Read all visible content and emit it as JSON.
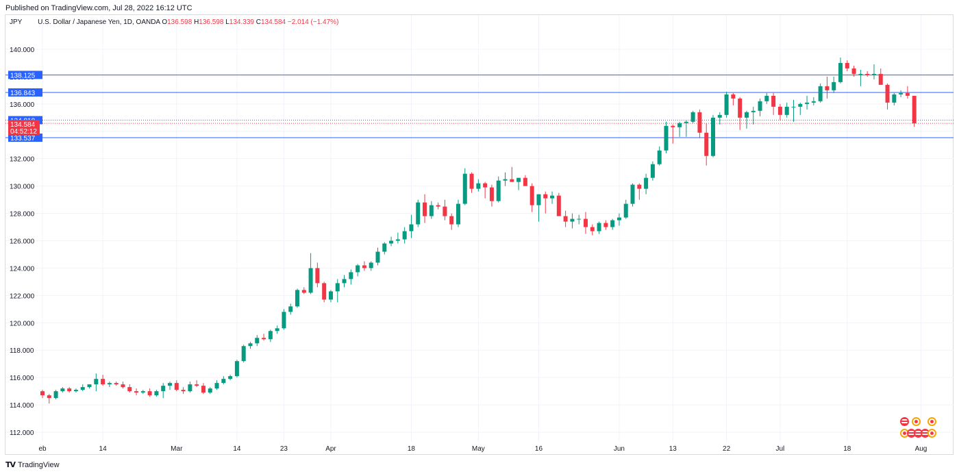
{
  "header": {
    "published": "Published on TradingView.com, Jul 28, 2022 16:12 UTC"
  },
  "legend": {
    "symbol": "JPY",
    "instrument": "U.S. Dollar / Japanese Yen, 1D, OANDA",
    "o_label": "O",
    "o_value": "136.598",
    "h_label": "H",
    "h_value": "136.598",
    "l_label": "L",
    "l_value": "134.339",
    "c_label": "C",
    "c_value": "134.584",
    "change": "−2.014 (−1.47%)"
  },
  "colors": {
    "up": "#089981",
    "down": "#f23645",
    "level_line": "#2962ff",
    "grid": "#f0f3fa"
  },
  "footer": {
    "brand": "TradingView"
  },
  "chart_data": {
    "type": "candlestick",
    "y_range": [
      111.3,
      141.6
    ],
    "y_ticks": [
      "140.000",
      "138.000",
      "136.000",
      "134.000",
      "132.000",
      "130.000",
      "128.000",
      "126.000",
      "124.000",
      "122.000",
      "120.000",
      "118.000",
      "116.000",
      "114.000",
      "112.000"
    ],
    "y_tick_values": [
      140,
      138,
      136,
      134,
      132,
      130,
      128,
      126,
      124,
      122,
      120,
      118,
      116,
      114,
      112
    ],
    "x_ticks": [
      "eb",
      "14",
      "Mar",
      "14",
      "23",
      "Apr",
      "18",
      "May",
      "16",
      "Jun",
      "13",
      "22",
      "Jul",
      "18",
      "Aug"
    ],
    "x_tick_index": [
      0,
      9,
      20,
      29,
      36,
      43,
      55,
      65,
      74,
      86,
      94,
      102,
      110,
      120,
      131
    ],
    "levels": [
      {
        "label": "138.125",
        "value": 138.125,
        "style": "solid"
      },
      {
        "label": "136.843",
        "value": 136.843,
        "style": "solid"
      },
      {
        "label": "134.818",
        "value": 134.818,
        "style": "dotted"
      },
      {
        "label": "133.537",
        "value": 133.537,
        "style": "solid"
      }
    ],
    "current_price": {
      "label": "134.584",
      "value": 134.584,
      "countdown": "04:52:12"
    },
    "candles": [
      [
        115.0,
        115.1,
        114.5,
        114.7
      ],
      [
        114.7,
        114.8,
        114.1,
        114.5
      ],
      [
        114.5,
        115.1,
        114.4,
        115.0
      ],
      [
        115.0,
        115.3,
        114.9,
        115.2
      ],
      [
        115.2,
        115.3,
        114.9,
        115.0
      ],
      [
        115.0,
        115.2,
        114.9,
        115.1
      ],
      [
        115.1,
        115.5,
        115.0,
        115.3
      ],
      [
        115.3,
        115.5,
        115.2,
        115.5
      ],
      [
        115.5,
        116.3,
        115.0,
        115.9
      ],
      [
        115.9,
        116.2,
        115.4,
        115.5
      ],
      [
        115.5,
        115.7,
        115.3,
        115.6
      ],
      [
        115.6,
        115.7,
        115.4,
        115.5
      ],
      [
        115.5,
        115.7,
        115.2,
        115.3
      ],
      [
        115.3,
        115.5,
        114.9,
        115.0
      ],
      [
        115.0,
        115.2,
        114.7,
        114.9
      ],
      [
        114.9,
        115.1,
        114.8,
        115.0
      ],
      [
        115.0,
        115.2,
        114.6,
        114.7
      ],
      [
        114.7,
        115.1,
        114.6,
        115.0
      ],
      [
        115.0,
        115.6,
        114.5,
        115.4
      ],
      [
        115.4,
        115.7,
        115.1,
        115.6
      ],
      [
        115.6,
        115.8,
        115.0,
        115.1
      ],
      [
        115.1,
        115.3,
        114.8,
        115.0
      ],
      [
        115.0,
        115.7,
        114.9,
        115.5
      ],
      [
        115.5,
        115.8,
        115.3,
        115.4
      ],
      [
        115.4,
        115.6,
        114.8,
        114.9
      ],
      [
        114.9,
        115.3,
        114.8,
        115.2
      ],
      [
        115.2,
        115.8,
        115.1,
        115.6
      ],
      [
        115.6,
        116.1,
        115.5,
        115.9
      ],
      [
        115.9,
        116.2,
        115.8,
        116.1
      ],
      [
        116.1,
        117.3,
        116.0,
        117.2
      ],
      [
        117.2,
        118.4,
        117.1,
        118.3
      ],
      [
        118.3,
        118.6,
        118.1,
        118.5
      ],
      [
        118.5,
        119.1,
        118.3,
        118.9
      ],
      [
        118.9,
        119.2,
        118.7,
        118.8
      ],
      [
        118.8,
        119.5,
        118.6,
        119.4
      ],
      [
        119.4,
        119.8,
        119.2,
        119.6
      ],
      [
        119.6,
        121.0,
        119.5,
        120.8
      ],
      [
        120.8,
        121.4,
        120.6,
        121.2
      ],
      [
        121.2,
        122.5,
        121.1,
        122.4
      ],
      [
        122.4,
        122.6,
        122.1,
        122.2
      ],
      [
        122.2,
        125.1,
        122.1,
        124.0
      ],
      [
        124.0,
        124.4,
        122.6,
        122.9
      ],
      [
        122.9,
        123.0,
        121.5,
        121.7
      ],
      [
        121.7,
        122.4,
        121.5,
        122.3
      ],
      [
        122.3,
        123.2,
        121.5,
        122.9
      ],
      [
        122.9,
        123.5,
        122.6,
        123.2
      ],
      [
        123.2,
        123.9,
        122.8,
        123.7
      ],
      [
        123.7,
        124.3,
        123.4,
        124.2
      ],
      [
        124.2,
        124.5,
        123.8,
        124.0
      ],
      [
        124.0,
        124.5,
        123.8,
        124.4
      ],
      [
        124.4,
        125.5,
        124.2,
        125.2
      ],
      [
        125.2,
        125.9,
        125.0,
        125.8
      ],
      [
        125.8,
        126.3,
        125.6,
        126.0
      ],
      [
        126.0,
        126.6,
        125.8,
        126.1
      ],
      [
        126.1,
        127.0,
        125.8,
        126.7
      ],
      [
        126.7,
        127.9,
        126.2,
        127.2
      ],
      [
        127.2,
        129.0,
        127.0,
        128.8
      ],
      [
        128.8,
        129.4,
        127.3,
        127.8
      ],
      [
        127.8,
        128.9,
        127.6,
        128.6
      ],
      [
        128.6,
        128.8,
        128.3,
        128.5
      ],
      [
        128.5,
        129.0,
        127.5,
        127.8
      ],
      [
        127.8,
        128.0,
        126.8,
        127.2
      ],
      [
        127.2,
        129.0,
        127.0,
        128.7
      ],
      [
        128.7,
        131.3,
        128.6,
        130.9
      ],
      [
        130.9,
        131.0,
        129.5,
        129.8
      ],
      [
        129.8,
        130.5,
        129.6,
        130.2
      ],
      [
        130.2,
        130.3,
        129.1,
        129.9
      ],
      [
        129.9,
        130.1,
        128.5,
        128.9
      ],
      [
        128.9,
        130.7,
        128.8,
        130.4
      ],
      [
        130.4,
        131.0,
        130.0,
        130.5
      ],
      [
        130.5,
        131.4,
        130.3,
        130.3
      ],
      [
        130.3,
        130.6,
        129.7,
        130.6
      ],
      [
        130.6,
        130.8,
        130.0,
        130.0
      ],
      [
        130.0,
        130.2,
        128.1,
        128.6
      ],
      [
        128.6,
        129.4,
        127.4,
        129.4
      ],
      [
        129.4,
        129.6,
        128.0,
        129.1
      ],
      [
        129.1,
        129.6,
        128.7,
        129.3
      ],
      [
        129.3,
        129.5,
        127.8,
        127.8
      ],
      [
        127.8,
        128.2,
        127.0,
        127.4
      ],
      [
        127.4,
        128.0,
        126.9,
        127.6
      ],
      [
        127.6,
        127.9,
        127.2,
        127.6
      ],
      [
        127.6,
        128.1,
        126.5,
        127.0
      ],
      [
        127.0,
        127.2,
        126.4,
        126.7
      ],
      [
        126.7,
        127.4,
        126.5,
        127.3
      ],
      [
        127.3,
        127.5,
        126.8,
        127.0
      ],
      [
        127.0,
        127.6,
        126.8,
        127.5
      ],
      [
        127.5,
        128.0,
        127.1,
        127.7
      ],
      [
        127.7,
        129.0,
        127.6,
        128.7
      ],
      [
        128.7,
        130.2,
        128.5,
        130.1
      ],
      [
        130.1,
        130.2,
        129.0,
        129.8
      ],
      [
        129.8,
        130.9,
        129.4,
        130.6
      ],
      [
        130.6,
        131.8,
        130.4,
        131.6
      ],
      [
        131.6,
        132.9,
        131.5,
        132.6
      ],
      [
        132.6,
        134.7,
        132.4,
        134.4
      ],
      [
        134.4,
        134.5,
        133.1,
        134.3
      ],
      [
        134.3,
        134.7,
        133.6,
        134.6
      ],
      [
        134.6,
        134.8,
        133.6,
        134.7
      ],
      [
        134.7,
        135.5,
        134.6,
        135.4
      ],
      [
        135.4,
        135.6,
        133.5,
        133.9
      ],
      [
        133.9,
        134.6,
        131.5,
        132.2
      ],
      [
        132.2,
        135.2,
        132.1,
        135.0
      ],
      [
        135.0,
        135.4,
        134.5,
        135.2
      ],
      [
        135.2,
        136.9,
        135.0,
        136.7
      ],
      [
        136.7,
        136.8,
        135.9,
        136.4
      ],
      [
        136.4,
        136.5,
        134.1,
        135.0
      ],
      [
        135.0,
        135.5,
        134.2,
        135.4
      ],
      [
        135.4,
        135.8,
        134.5,
        135.5
      ],
      [
        135.5,
        136.4,
        135.1,
        136.2
      ],
      [
        136.2,
        136.8,
        136.0,
        136.6
      ],
      [
        136.6,
        136.8,
        135.2,
        135.8
      ],
      [
        135.8,
        136.0,
        134.8,
        135.2
      ],
      [
        135.2,
        136.1,
        135.0,
        135.8
      ],
      [
        135.8,
        136.3,
        134.7,
        135.8
      ],
      [
        135.8,
        136.1,
        135.2,
        136.0
      ],
      [
        136.0,
        136.6,
        135.6,
        136.1
      ],
      [
        136.1,
        136.5,
        135.9,
        136.2
      ],
      [
        136.2,
        137.5,
        136.1,
        137.3
      ],
      [
        137.3,
        138.0,
        136.4,
        137.0
      ],
      [
        137.0,
        138.0,
        136.8,
        137.6
      ],
      [
        137.6,
        139.4,
        137.5,
        139.0
      ],
      [
        139.0,
        139.2,
        138.4,
        138.6
      ],
      [
        138.6,
        138.8,
        138.0,
        138.2
      ],
      [
        138.2,
        138.5,
        137.3,
        138.2
      ],
      [
        138.2,
        138.4,
        138.0,
        138.1
      ],
      [
        138.1,
        138.9,
        137.8,
        138.2
      ],
      [
        138.2,
        138.6,
        137.5,
        137.4
      ],
      [
        137.4,
        137.5,
        135.6,
        136.1
      ],
      [
        136.1,
        136.8,
        135.9,
        136.7
      ],
      [
        136.7,
        137.0,
        136.5,
        136.8
      ],
      [
        136.8,
        137.3,
        136.4,
        136.6
      ],
      [
        136.598,
        136.598,
        134.339,
        134.584
      ]
    ]
  }
}
